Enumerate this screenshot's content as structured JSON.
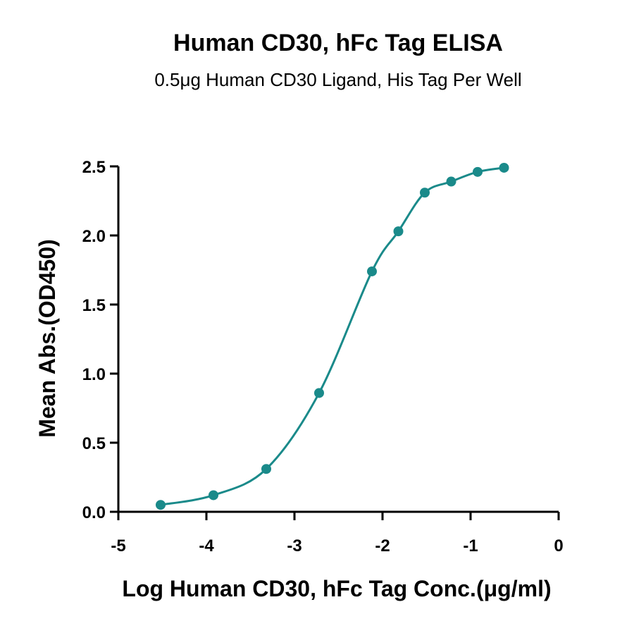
{
  "chart_data": {
    "type": "scatter",
    "title": "Human CD30, hFc Tag ELISA",
    "subtitle": "0.5μg Human CD30 Ligand, His Tag Per Well",
    "xlabel": "Log Human CD30, hFc Tag Conc.(μg/ml)",
    "ylabel": "Mean Abs.(OD450)",
    "xlim": [
      -5,
      0
    ],
    "ylim": [
      0,
      2.5
    ],
    "xticks": [
      "-5",
      "-4",
      "-3",
      "-2",
      "-1",
      "0"
    ],
    "yticks": [
      "0.0",
      "0.5",
      "1.0",
      "1.5",
      "2.0",
      "2.5"
    ],
    "color": "#1a8a8a",
    "fit": "sigmoidal curve",
    "series": [
      {
        "x": [
          -4.52,
          -3.92,
          -3.32,
          -2.72,
          -2.12,
          -1.82,
          -1.52,
          -1.22,
          -0.92,
          -0.62
        ],
        "values": [
          0.05,
          0.12,
          0.31,
          0.86,
          1.74,
          2.03,
          2.31,
          2.39,
          2.46,
          2.49
        ]
      }
    ]
  }
}
